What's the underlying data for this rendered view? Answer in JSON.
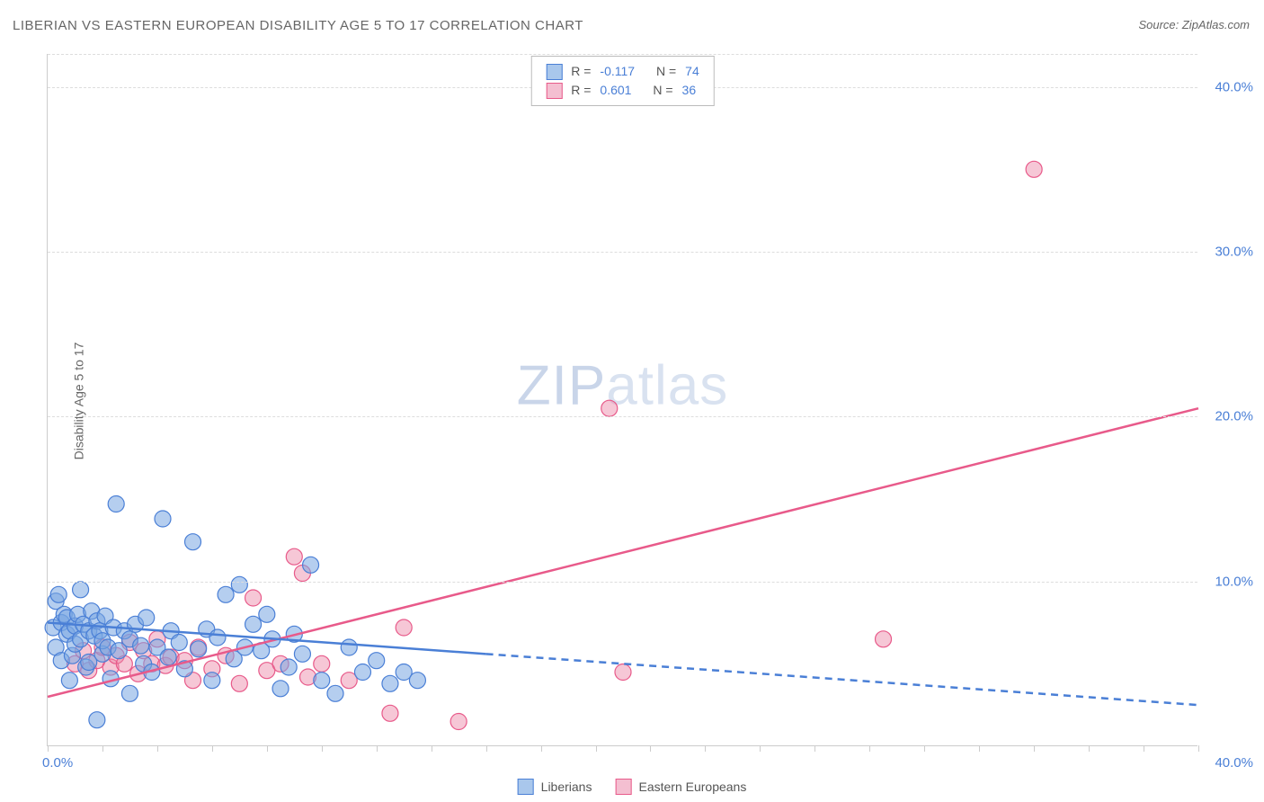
{
  "title": "LIBERIAN VS EASTERN EUROPEAN DISABILITY AGE 5 TO 17 CORRELATION CHART",
  "source_label": "Source: ZipAtlas.com",
  "y_axis_label": "Disability Age 5 to 17",
  "watermark": {
    "zip": "ZIP",
    "atlas": "atlas"
  },
  "chart": {
    "type": "scatter",
    "background_color": "#ffffff",
    "xlim": [
      0,
      42
    ],
    "ylim": [
      0,
      42
    ],
    "x_ticks": [
      0,
      2,
      4,
      6,
      8,
      10,
      12,
      14,
      16,
      18,
      20,
      22,
      24,
      26,
      28,
      30,
      32,
      34,
      36,
      38,
      40,
      42
    ],
    "x_tick_labels": {
      "0": "0.0%",
      "42": "40.0%"
    },
    "y_grid": [
      10,
      20,
      30,
      40,
      42
    ],
    "y_tick_labels": {
      "10": "10.0%",
      "20": "20.0%",
      "30": "30.0%",
      "40": "40.0%"
    },
    "grid_color": "#dddddd",
    "axis_color": "#cccccc",
    "tick_label_color": "#4a7fd6",
    "marker_radius": 9,
    "marker_stroke_width": 1.2,
    "trend_line_width": 2.5,
    "series": {
      "liberians": {
        "label": "Liberians",
        "fill": "rgba(120,165,225,0.55)",
        "stroke": "#4a7fd6",
        "swatch_fill": "#a9c7ec",
        "swatch_border": "#4a7fd6",
        "points": [
          [
            0.2,
            7.2
          ],
          [
            0.3,
            8.8
          ],
          [
            0.3,
            6.0
          ],
          [
            0.4,
            9.2
          ],
          [
            0.5,
            5.2
          ],
          [
            0.5,
            7.5
          ],
          [
            0.6,
            8.0
          ],
          [
            0.7,
            6.8
          ],
          [
            0.7,
            7.8
          ],
          [
            0.8,
            7.0
          ],
          [
            0.8,
            4.0
          ],
          [
            0.9,
            5.5
          ],
          [
            1.0,
            7.3
          ],
          [
            1.0,
            6.2
          ],
          [
            1.1,
            8.0
          ],
          [
            1.2,
            6.5
          ],
          [
            1.2,
            9.5
          ],
          [
            1.3,
            7.4
          ],
          [
            1.4,
            4.8
          ],
          [
            1.5,
            7.0
          ],
          [
            1.5,
            5.1
          ],
          [
            1.6,
            8.2
          ],
          [
            1.7,
            6.7
          ],
          [
            1.8,
            1.6
          ],
          [
            1.8,
            7.6
          ],
          [
            1.9,
            7.0
          ],
          [
            2.0,
            5.6
          ],
          [
            2.0,
            6.4
          ],
          [
            2.1,
            7.9
          ],
          [
            2.2,
            6.0
          ],
          [
            2.3,
            4.1
          ],
          [
            2.4,
            7.2
          ],
          [
            2.5,
            14.7
          ],
          [
            2.6,
            5.8
          ],
          [
            2.8,
            7.0
          ],
          [
            3.0,
            6.5
          ],
          [
            3.0,
            3.2
          ],
          [
            3.2,
            7.4
          ],
          [
            3.4,
            6.1
          ],
          [
            3.5,
            5.0
          ],
          [
            3.6,
            7.8
          ],
          [
            3.8,
            4.5
          ],
          [
            4.0,
            6.0
          ],
          [
            4.2,
            13.8
          ],
          [
            4.4,
            5.4
          ],
          [
            4.5,
            7.0
          ],
          [
            4.8,
            6.3
          ],
          [
            5.0,
            4.7
          ],
          [
            5.3,
            12.4
          ],
          [
            5.5,
            5.9
          ],
          [
            5.8,
            7.1
          ],
          [
            6.0,
            4.0
          ],
          [
            6.2,
            6.6
          ],
          [
            6.5,
            9.2
          ],
          [
            6.8,
            5.3
          ],
          [
            7.0,
            9.8
          ],
          [
            7.2,
            6.0
          ],
          [
            7.5,
            7.4
          ],
          [
            7.8,
            5.8
          ],
          [
            8.0,
            8.0
          ],
          [
            8.2,
            6.5
          ],
          [
            8.5,
            3.5
          ],
          [
            8.8,
            4.8
          ],
          [
            9.0,
            6.8
          ],
          [
            9.3,
            5.6
          ],
          [
            9.6,
            11.0
          ],
          [
            10.0,
            4.0
          ],
          [
            10.5,
            3.2
          ],
          [
            11.0,
            6.0
          ],
          [
            11.5,
            4.5
          ],
          [
            12.0,
            5.2
          ],
          [
            12.5,
            3.8
          ],
          [
            13.0,
            4.5
          ],
          [
            13.5,
            4.0
          ]
        ],
        "trend": {
          "solid": {
            "x1": 0,
            "y1": 7.5,
            "x2": 16,
            "y2": 5.6
          },
          "dashed": {
            "x1": 16,
            "y1": 5.6,
            "x2": 42,
            "y2": 2.5
          }
        },
        "stats": {
          "R": "-0.117",
          "N": "74"
        }
      },
      "eastern_europeans": {
        "label": "Eastern Europeans",
        "fill": "rgba(235,130,165,0.45)",
        "stroke": "#e85a8a",
        "swatch_fill": "#f4bfd1",
        "swatch_border": "#e85a8a",
        "points": [
          [
            1.0,
            5.0
          ],
          [
            1.3,
            5.8
          ],
          [
            1.5,
            4.6
          ],
          [
            1.8,
            5.2
          ],
          [
            2.0,
            6.0
          ],
          [
            2.3,
            4.8
          ],
          [
            2.5,
            5.5
          ],
          [
            2.8,
            5.0
          ],
          [
            3.0,
            6.3
          ],
          [
            3.3,
            4.4
          ],
          [
            3.5,
            5.8
          ],
          [
            3.8,
            5.0
          ],
          [
            4.0,
            6.5
          ],
          [
            4.3,
            4.9
          ],
          [
            4.5,
            5.4
          ],
          [
            5.0,
            5.2
          ],
          [
            5.3,
            4.0
          ],
          [
            5.5,
            6.0
          ],
          [
            6.0,
            4.7
          ],
          [
            6.5,
            5.5
          ],
          [
            7.0,
            3.8
          ],
          [
            7.5,
            9.0
          ],
          [
            8.0,
            4.6
          ],
          [
            8.5,
            5.0
          ],
          [
            9.0,
            11.5
          ],
          [
            9.3,
            10.5
          ],
          [
            9.5,
            4.2
          ],
          [
            10.0,
            5.0
          ],
          [
            11.0,
            4.0
          ],
          [
            12.5,
            2.0
          ],
          [
            13.0,
            7.2
          ],
          [
            15.0,
            1.5
          ],
          [
            20.5,
            20.5
          ],
          [
            21.0,
            4.5
          ],
          [
            30.5,
            6.5
          ],
          [
            36.0,
            35.0
          ]
        ],
        "trend": {
          "solid": {
            "x1": 0,
            "y1": 3.0,
            "x2": 42,
            "y2": 20.5
          }
        },
        "stats": {
          "R": "0.601",
          "N": "36"
        }
      }
    }
  },
  "stats_box": {
    "label_R": "R =",
    "label_N": "N ="
  },
  "legend": {
    "items": [
      "liberians",
      "eastern_europeans"
    ]
  }
}
